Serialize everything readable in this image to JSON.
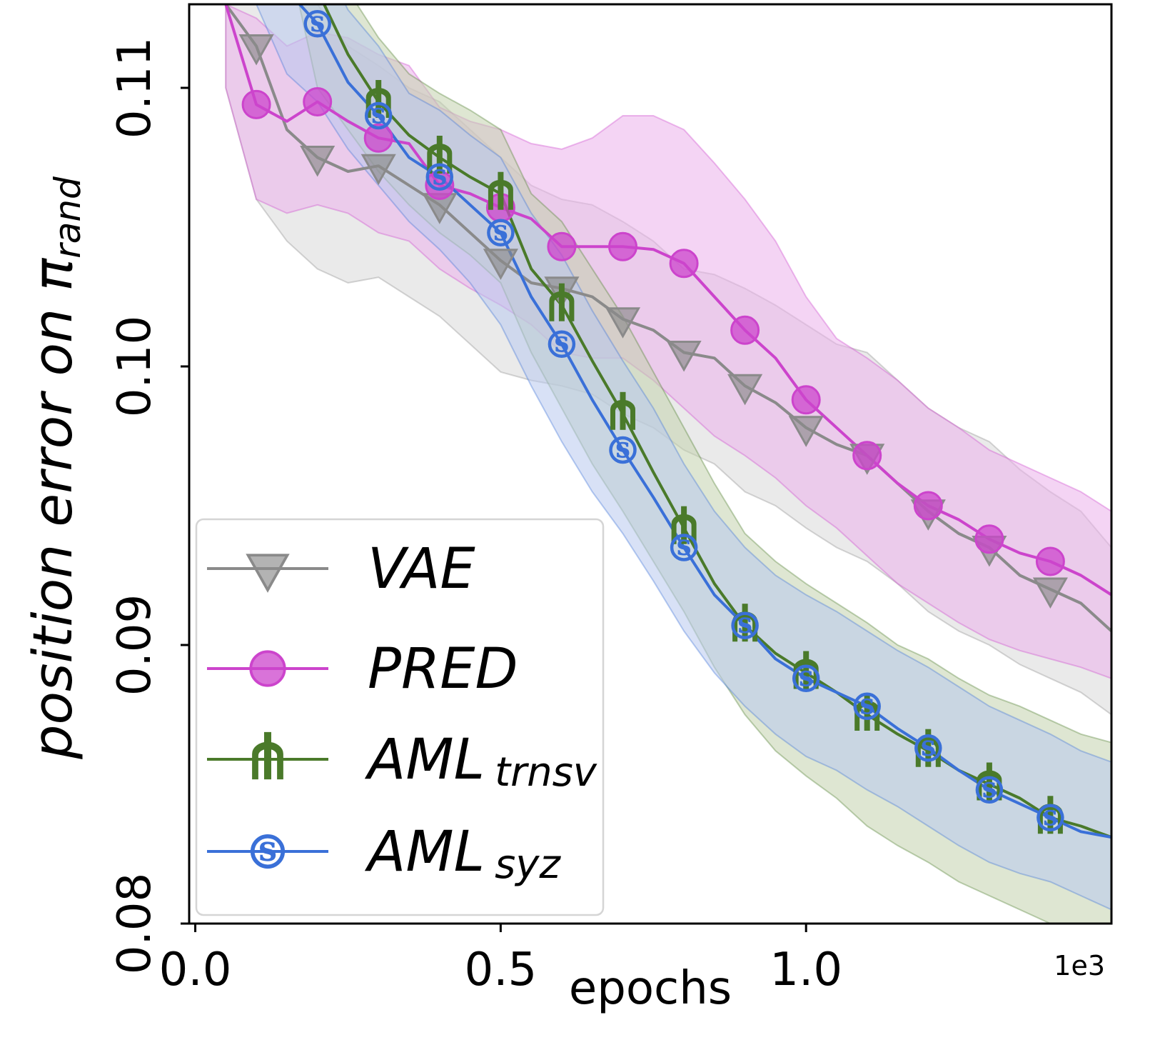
{
  "chart_data": {
    "type": "line",
    "xlabel": "epochs",
    "ylabel_main": "position error on ",
    "ylabel_symbol": "π",
    "ylabel_sub": "rand",
    "x_scale_label": "1e3",
    "xlim": [
      -0.01,
      1.5
    ],
    "ylim": [
      0.08,
      0.113
    ],
    "x_ticks": [
      {
        "value": 0.0,
        "label": "0.0"
      },
      {
        "value": 0.5,
        "label": "0.5"
      },
      {
        "value": 1.0,
        "label": "1.0"
      }
    ],
    "y_ticks": [
      {
        "value": 0.08,
        "label": "0.08"
      },
      {
        "value": 0.09,
        "label": "0.09"
      },
      {
        "value": 0.1,
        "label": "0.10"
      },
      {
        "value": 0.11,
        "label": "0.11"
      }
    ],
    "series": [
      {
        "name": "VAE",
        "sub": "",
        "marker": "triangle",
        "color": "#8a8a8a",
        "fill": "#d9d9d9",
        "x": [
          0.05,
          0.1,
          0.15,
          0.2,
          0.25,
          0.3,
          0.35,
          0.4,
          0.45,
          0.5,
          0.55,
          0.6,
          0.65,
          0.7,
          0.75,
          0.8,
          0.85,
          0.9,
          0.95,
          1.0,
          1.05,
          1.1,
          1.15,
          1.2,
          1.25,
          1.3,
          1.35,
          1.4,
          1.45,
          1.5
        ],
        "y": [
          0.113,
          0.1115,
          0.1085,
          0.1075,
          0.107,
          0.1072,
          0.1065,
          0.1058,
          0.1048,
          0.1038,
          0.103,
          0.1028,
          0.1025,
          0.1017,
          0.1013,
          0.1005,
          0.1003,
          0.0993,
          0.0987,
          0.0978,
          0.0972,
          0.0968,
          0.0958,
          0.0948,
          0.094,
          0.0935,
          0.0925,
          0.092,
          0.0915,
          0.0905
        ],
        "lower": [
          0.11,
          0.106,
          0.1045,
          0.1035,
          0.103,
          0.1032,
          0.1025,
          0.1018,
          0.1008,
          0.0998,
          0.0995,
          0.0993,
          0.099,
          0.0983,
          0.0978,
          0.097,
          0.0965,
          0.0955,
          0.095,
          0.0942,
          0.0935,
          0.093,
          0.0922,
          0.0912,
          0.0905,
          0.09,
          0.0893,
          0.0888,
          0.0883,
          0.0875
        ],
        "upper": [
          0.113,
          0.113,
          0.113,
          0.113,
          0.1115,
          0.1108,
          0.11,
          0.1095,
          0.1085,
          0.1075,
          0.1065,
          0.106,
          0.1058,
          0.1052,
          0.1045,
          0.1035,
          0.1033,
          0.1028,
          0.1022,
          0.1015,
          0.1008,
          0.1005,
          0.0995,
          0.0985,
          0.0978,
          0.0973,
          0.0963,
          0.0955,
          0.0948,
          0.0935
        ],
        "marker_x": [
          0.1,
          0.2,
          0.3,
          0.4,
          0.5,
          0.6,
          0.7,
          0.8,
          0.9,
          1.0,
          1.1,
          1.2,
          1.3,
          1.4
        ]
      },
      {
        "name": "PRED",
        "sub": "",
        "marker": "circle",
        "color": "#cc44cc",
        "fill": "#ebb0eb",
        "x": [
          0.05,
          0.1,
          0.15,
          0.2,
          0.25,
          0.3,
          0.35,
          0.4,
          0.45,
          0.5,
          0.55,
          0.6,
          0.65,
          0.7,
          0.75,
          0.8,
          0.85,
          0.9,
          0.95,
          1.0,
          1.05,
          1.1,
          1.15,
          1.2,
          1.25,
          1.3,
          1.35,
          1.4,
          1.45,
          1.5
        ],
        "y": [
          0.113,
          0.1094,
          0.1088,
          0.1095,
          0.1088,
          0.1082,
          0.108,
          0.1065,
          0.1062,
          0.1057,
          0.1053,
          0.1043,
          0.1043,
          0.1043,
          0.1042,
          0.1037,
          0.1025,
          0.1013,
          0.1003,
          0.0988,
          0.0978,
          0.0968,
          0.0958,
          0.095,
          0.0945,
          0.0938,
          0.0933,
          0.093,
          0.0925,
          0.0918
        ],
        "lower": [
          0.11,
          0.106,
          0.1055,
          0.1058,
          0.1055,
          0.1048,
          0.1045,
          0.1035,
          0.1028,
          0.1022,
          0.1015,
          0.1005,
          0.1003,
          0.1003,
          0.0995,
          0.0985,
          0.0975,
          0.0968,
          0.096,
          0.095,
          0.0942,
          0.0932,
          0.0922,
          0.0915,
          0.0908,
          0.0902,
          0.0898,
          0.0895,
          0.0892,
          0.0888
        ],
        "upper": [
          0.113,
          0.1125,
          0.1115,
          0.112,
          0.1118,
          0.1112,
          0.1108,
          0.1093,
          0.1088,
          0.1085,
          0.108,
          0.1078,
          0.1082,
          0.109,
          0.109,
          0.1085,
          0.1073,
          0.106,
          0.1045,
          0.1025,
          0.101,
          0.1003,
          0.0995,
          0.0985,
          0.0978,
          0.097,
          0.0965,
          0.096,
          0.0955,
          0.0948
        ],
        "marker_x": [
          0.1,
          0.2,
          0.3,
          0.4,
          0.5,
          0.6,
          0.7,
          0.8,
          0.9,
          1.0,
          1.1,
          1.2,
          1.3,
          1.4
        ]
      },
      {
        "name": "AML",
        "sub": "trnsv",
        "marker": "trident",
        "color": "#4a7a2a",
        "fill": "#c2d1ad",
        "x": [
          0.05,
          0.1,
          0.15,
          0.2,
          0.25,
          0.3,
          0.35,
          0.4,
          0.45,
          0.5,
          0.55,
          0.6,
          0.65,
          0.7,
          0.75,
          0.8,
          0.85,
          0.9,
          0.95,
          1.0,
          1.05,
          1.1,
          1.15,
          1.2,
          1.25,
          1.3,
          1.35,
          1.4,
          1.45,
          1.5
        ],
        "y": [
          0.115,
          0.115,
          0.115,
          0.1135,
          0.1112,
          0.1095,
          0.1083,
          0.1075,
          0.1068,
          0.1062,
          0.1035,
          0.1022,
          0.1002,
          0.0983,
          0.0962,
          0.0942,
          0.0922,
          0.0907,
          0.0897,
          0.089,
          0.0883,
          0.0875,
          0.0868,
          0.0862,
          0.0855,
          0.085,
          0.0845,
          0.0838,
          0.0835,
          0.0831
        ],
        "lower": [
          0.115,
          0.115,
          0.115,
          0.11,
          0.1085,
          0.107,
          0.1058,
          0.1048,
          0.104,
          0.103,
          0.1005,
          0.0985,
          0.0965,
          0.0948,
          0.093,
          0.0912,
          0.0892,
          0.0875,
          0.0862,
          0.0853,
          0.0845,
          0.0835,
          0.0828,
          0.0822,
          0.0815,
          0.081,
          0.0805,
          0.08,
          0.0795,
          0.0788
        ],
        "upper": [
          0.115,
          0.115,
          0.115,
          0.115,
          0.1135,
          0.1118,
          0.1105,
          0.1098,
          0.1092,
          0.1085,
          0.1062,
          0.1052,
          0.1035,
          0.1018,
          0.0998,
          0.0978,
          0.0958,
          0.094,
          0.093,
          0.0922,
          0.0915,
          0.0908,
          0.09,
          0.0895,
          0.0888,
          0.0882,
          0.0878,
          0.0873,
          0.0868,
          0.0865
        ],
        "marker_x": [
          0.3,
          0.4,
          0.5,
          0.6,
          0.7,
          0.8,
          0.9,
          1.0,
          1.1,
          1.2,
          1.3,
          1.4
        ]
      },
      {
        "name": "AML",
        "sub": "syz",
        "marker": "s-circle",
        "color": "#3a70d8",
        "fill": "#b8c8ee",
        "x": [
          0.05,
          0.1,
          0.15,
          0.2,
          0.25,
          0.3,
          0.35,
          0.4,
          0.45,
          0.5,
          0.55,
          0.6,
          0.65,
          0.7,
          0.75,
          0.8,
          0.85,
          0.9,
          0.95,
          1.0,
          1.05,
          1.1,
          1.15,
          1.2,
          1.25,
          1.3,
          1.35,
          1.4,
          1.45,
          1.5
        ],
        "y": [
          0.115,
          0.115,
          0.1135,
          0.1123,
          0.1102,
          0.109,
          0.1075,
          0.1068,
          0.1058,
          0.1048,
          0.1025,
          0.1008,
          0.0988,
          0.097,
          0.0953,
          0.0935,
          0.0918,
          0.0907,
          0.0895,
          0.0888,
          0.0883,
          0.0878,
          0.087,
          0.0863,
          0.0855,
          0.0848,
          0.0843,
          0.0838,
          0.0833,
          0.0831
        ],
        "lower": [
          0.115,
          0.113,
          0.1105,
          0.1095,
          0.1078,
          0.1065,
          0.1052,
          0.1042,
          0.103,
          0.1015,
          0.0993,
          0.0973,
          0.0955,
          0.094,
          0.0923,
          0.0905,
          0.089,
          0.0878,
          0.0868,
          0.086,
          0.0855,
          0.0848,
          0.0842,
          0.0835,
          0.0828,
          0.0822,
          0.0818,
          0.0815,
          0.081,
          0.0805
        ],
        "upper": [
          0.115,
          0.115,
          0.115,
          0.115,
          0.1128,
          0.1115,
          0.1098,
          0.1092,
          0.1083,
          0.1075,
          0.1055,
          0.104,
          0.102,
          0.1002,
          0.0985,
          0.0965,
          0.0948,
          0.0935,
          0.0925,
          0.0918,
          0.0912,
          0.0905,
          0.0898,
          0.0892,
          0.0885,
          0.0878,
          0.0873,
          0.0868,
          0.0862,
          0.0858
        ],
        "marker_x": [
          0.2,
          0.3,
          0.4,
          0.5,
          0.6,
          0.7,
          0.8,
          0.9,
          1.0,
          1.1,
          1.2,
          1.3,
          1.4
        ]
      }
    ],
    "legend_position": "lower-left"
  }
}
